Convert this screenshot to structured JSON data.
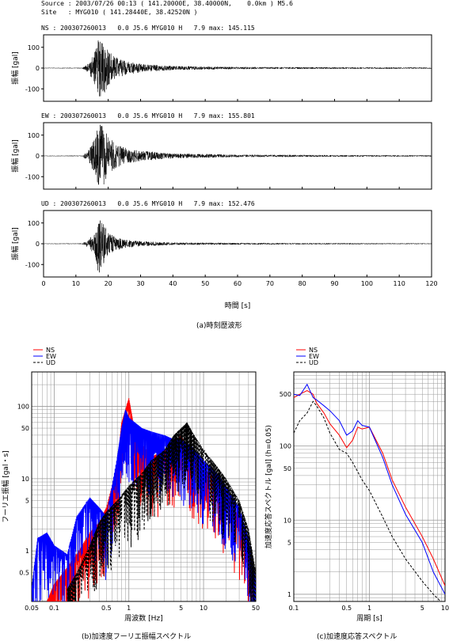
{
  "header": {
    "source": "Source : 2003/07/26 00:13 ( 141.20000E, 38.40000N,    0.0km ) M5.6",
    "site": "Site   : MYG010 ( 141.28440E, 38.42520N )"
  },
  "waveforms": {
    "ylabel": "振幅 [gal]",
    "xlabel": "時間 [s]",
    "caption": "(a)時刻歴波形",
    "xlim": [
      0,
      120
    ],
    "xticks": [
      0,
      10,
      20,
      30,
      40,
      50,
      60,
      70,
      80,
      90,
      100,
      110,
      120
    ],
    "ylim": [
      -160,
      160
    ],
    "yticks": [
      100,
      0,
      -100
    ],
    "components": [
      {
        "label": "NS : 200307260013   0.0 J5.6 MYG010 H   7.9 max: 145.115",
        "max": 145.115
      },
      {
        "label": "EW : 200307260013   0.0 J5.6 MYG010 H   7.9 max: 155.801",
        "max": 155.801
      },
      {
        "label": "UD : 200307260013   0.0 J5.6 MYG010 H   7.9 max: 152.476",
        "max": 152.476
      }
    ]
  },
  "fourier": {
    "ylabel": "フーリエ振幅 [gal・s]",
    "xlabel": "周波数 [Hz]",
    "caption": "(b)加速度フーリエ振幅スペクトル",
    "xlim": [
      0.05,
      50
    ],
    "ylim": [
      0.2,
      300
    ],
    "xtick_labels": [
      "0.05",
      "0.1",
      "0.5",
      "1",
      "5",
      "10",
      "50"
    ],
    "ytick_labels": [
      "100",
      "50",
      "10",
      "5",
      "1",
      "0.5"
    ]
  },
  "response": {
    "ylabel": "加速度応答スペクトル [gal] (h=0.05)",
    "xlabel": "周期 [s]",
    "caption": "(c)加速度応答スペクトル",
    "xlim": [
      0.1,
      10
    ],
    "ylim": [
      0.8,
      1000
    ],
    "xtick_labels": [
      "0.1",
      "0.5",
      "1",
      "5",
      "10"
    ],
    "ytick_labels": [
      "500",
      "100",
      "50",
      "10",
      "5",
      "1"
    ]
  },
  "legend": [
    {
      "name": "NS",
      "color": "#ff0000",
      "dash": ""
    },
    {
      "name": "EW",
      "color": "#0000ff",
      "dash": ""
    },
    {
      "name": "UD",
      "color": "#000000",
      "dash": "3,2"
    }
  ],
  "chart_data": [
    {
      "type": "line",
      "title": "(a)時刻歴波形",
      "xlabel": "時間 [s]",
      "ylabel": "振幅 [gal]",
      "xlim": [
        0,
        120
      ],
      "ylim": [
        -160,
        160
      ],
      "series": [
        {
          "name": "NS",
          "max": 145.115,
          "envelope_x": [
            0,
            12,
            14,
            16,
            17,
            18,
            20,
            22,
            25,
            30,
            40,
            60,
            90,
            120
          ],
          "envelope_y": [
            1,
            2,
            25,
            85,
            140,
            145,
            90,
            55,
            35,
            20,
            10,
            5,
            4,
            3
          ]
        },
        {
          "name": "EW",
          "max": 155.801,
          "envelope_x": [
            0,
            12,
            14,
            16,
            17,
            18,
            20,
            22,
            25,
            30,
            40,
            60,
            90,
            120
          ],
          "envelope_y": [
            1,
            2,
            30,
            90,
            150,
            155,
            100,
            60,
            40,
            25,
            12,
            6,
            4,
            3
          ]
        },
        {
          "name": "UD",
          "max": 152.476,
          "envelope_x": [
            0,
            12,
            14,
            16,
            17,
            18,
            20,
            22,
            25,
            30,
            40,
            60,
            90,
            120
          ],
          "envelope_y": [
            1,
            2,
            20,
            60,
            150,
            110,
            60,
            35,
            20,
            12,
            6,
            4,
            3,
            2
          ]
        }
      ]
    },
    {
      "type": "line",
      "title": "(b)加速度フーリエ振幅スペクトル",
      "xlabel": "周波数 [Hz]",
      "ylabel": "フーリエ振幅 [gal・s]",
      "xscale": "log",
      "yscale": "log",
      "xlim": [
        0.05,
        50
      ],
      "ylim": [
        0.2,
        300
      ],
      "series": [
        {
          "name": "NS",
          "x": [
            0.08,
            0.1,
            0.15,
            0.2,
            0.3,
            0.4,
            0.5,
            0.7,
            0.8,
            1.0,
            1.2,
            1.5,
            2,
            3,
            4,
            5,
            7,
            10,
            15,
            20,
            30,
            40,
            50
          ],
          "y": [
            0.2,
            0.35,
            0.6,
            0.9,
            1.8,
            2.5,
            4,
            15,
            60,
            130,
            45,
            30,
            20,
            25,
            30,
            40,
            20,
            14,
            10,
            6,
            3,
            1,
            0.3
          ]
        },
        {
          "name": "EW",
          "x": [
            0.05,
            0.06,
            0.08,
            0.1,
            0.15,
            0.2,
            0.3,
            0.4,
            0.5,
            0.7,
            0.8,
            0.9,
            1.0,
            1.2,
            1.5,
            2,
            3,
            4,
            5,
            7,
            10,
            15,
            20,
            30,
            40,
            50
          ],
          "y": [
            0.3,
            1.5,
            1.8,
            1.2,
            0.9,
            3,
            5.5,
            4,
            3,
            20,
            50,
            90,
            70,
            60,
            50,
            45,
            40,
            35,
            35,
            28,
            18,
            12,
            8,
            4,
            1.5,
            0.4
          ]
        },
        {
          "name": "UD",
          "x": [
            0.15,
            0.2,
            0.3,
            0.4,
            0.5,
            0.7,
            1.0,
            1.5,
            2,
            3,
            4,
            5,
            6,
            7,
            10,
            15,
            20,
            30,
            40,
            50
          ],
          "y": [
            0.3,
            0.5,
            1.2,
            2.5,
            3.5,
            5,
            8,
            12,
            18,
            25,
            40,
            50,
            60,
            45,
            25,
            15,
            10,
            5,
            2,
            0.5
          ]
        }
      ]
    },
    {
      "type": "line",
      "title": "(c)加速度応答スペクトル",
      "xlabel": "周期 [s]",
      "ylabel": "加速度応答スペクトル [gal] (h=0.05)",
      "xscale": "log",
      "yscale": "log",
      "xlim": [
        0.1,
        10
      ],
      "ylim": [
        0.8,
        1000
      ],
      "series": [
        {
          "name": "NS",
          "x": [
            0.1,
            0.12,
            0.15,
            0.18,
            0.2,
            0.25,
            0.3,
            0.4,
            0.5,
            0.6,
            0.7,
            0.8,
            1.0,
            1.5,
            2,
            3,
            5,
            7,
            10
          ],
          "y": [
            450,
            500,
            560,
            500,
            380,
            280,
            200,
            140,
            95,
            120,
            180,
            170,
            180,
            80,
            35,
            15,
            6,
            3,
            1.3
          ]
        },
        {
          "name": "EW",
          "x": [
            0.1,
            0.12,
            0.15,
            0.18,
            0.2,
            0.25,
            0.3,
            0.4,
            0.5,
            0.6,
            0.7,
            0.8,
            1.0,
            1.5,
            2,
            3,
            5,
            7,
            10
          ],
          "y": [
            500,
            480,
            680,
            450,
            420,
            350,
            300,
            220,
            140,
            160,
            220,
            190,
            180,
            70,
            30,
            12,
            5,
            2,
            1
          ]
        },
        {
          "name": "UD",
          "x": [
            0.1,
            0.12,
            0.15,
            0.18,
            0.2,
            0.25,
            0.3,
            0.4,
            0.5,
            0.6,
            0.7,
            0.8,
            1.0,
            1.5,
            2,
            3,
            5,
            7,
            10
          ],
          "y": [
            150,
            220,
            280,
            400,
            350,
            240,
            150,
            90,
            80,
            60,
            45,
            35,
            25,
            11,
            6,
            3,
            1.5,
            1,
            0.7
          ]
        }
      ]
    }
  ]
}
